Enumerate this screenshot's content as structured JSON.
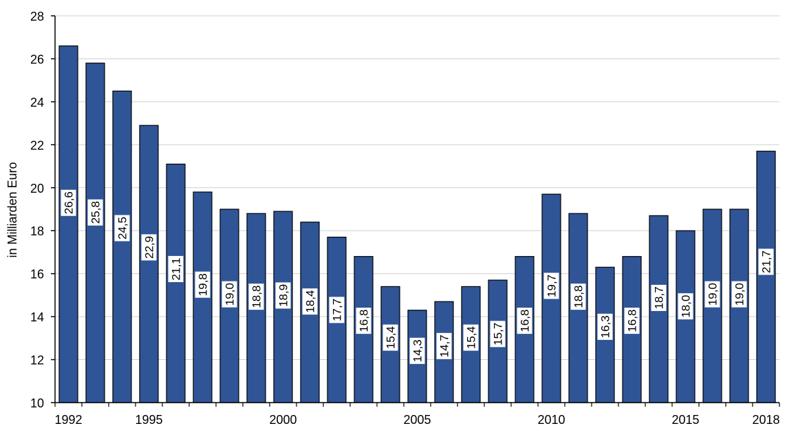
{
  "chart_data": {
    "type": "bar",
    "title": "",
    "xlabel": "",
    "ylabel": "in Milliarden Euro",
    "ylim": [
      10,
      28
    ],
    "yticks": [
      10,
      12,
      14,
      16,
      18,
      20,
      22,
      24,
      26,
      28
    ],
    "grid": true,
    "bar_color": "#2F5597",
    "categories": [
      1992,
      1993,
      1994,
      1995,
      1996,
      1997,
      1998,
      1999,
      2000,
      2001,
      2002,
      2003,
      2004,
      2005,
      2006,
      2007,
      2008,
      2009,
      2010,
      2011,
      2012,
      2013,
      2014,
      2015,
      2016,
      2017,
      2018
    ],
    "x_tick_labels": [
      "1992",
      "1995",
      "2000",
      "2005",
      "2010",
      "2015",
      "2018"
    ],
    "values": [
      26.6,
      25.8,
      24.5,
      22.9,
      21.1,
      19.8,
      19.0,
      18.8,
      18.9,
      18.4,
      17.7,
      16.8,
      15.4,
      14.3,
      14.7,
      15.4,
      15.7,
      16.8,
      19.7,
      18.8,
      16.3,
      16.8,
      18.7,
      18.0,
      19.0,
      19.0,
      21.7
    ],
    "data_labels": [
      "26,6",
      "25,8",
      "24,5",
      "22,9",
      "21,1",
      "19,8",
      "19,0",
      "18,8",
      "18,9",
      "18,4",
      "17,7",
      "16,8",
      "15,4",
      "14,3",
      "14,7",
      "15,4",
      "15,7",
      "16,8",
      "19,7",
      "18,8",
      "16,3",
      "16,8",
      "18,7",
      "18,0",
      "19,0",
      "19,0",
      "21,7"
    ]
  }
}
